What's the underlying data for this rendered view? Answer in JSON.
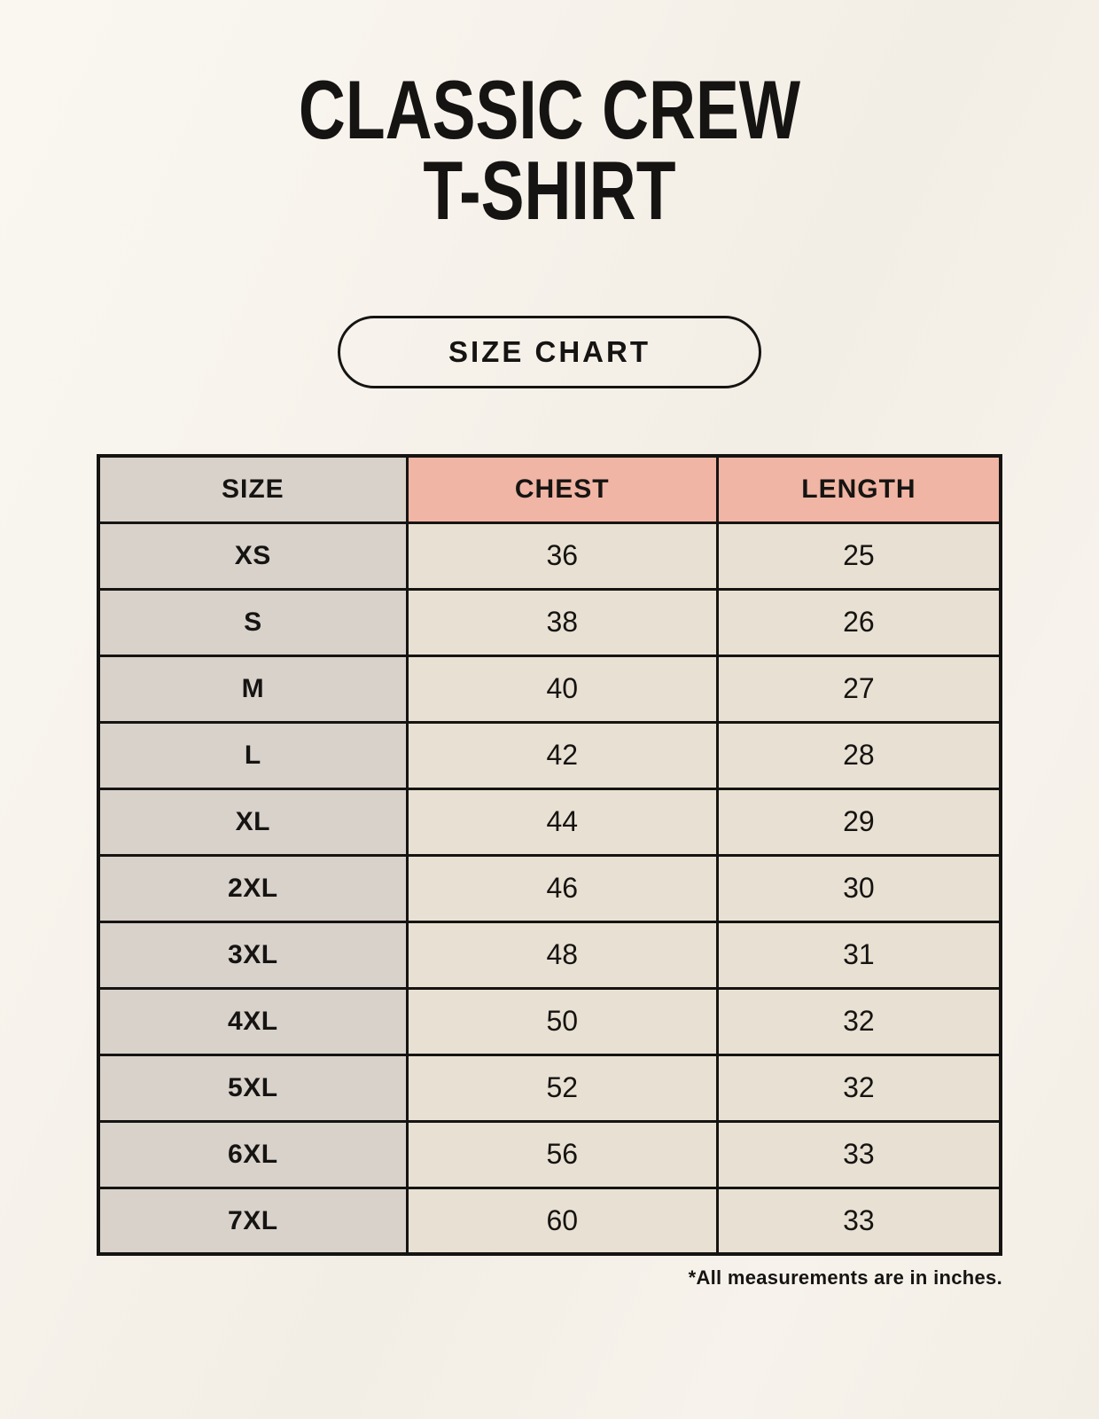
{
  "title": {
    "line1": "CLASSIC CREW",
    "line2": "T-SHIRT"
  },
  "size_chart_button": {
    "label": "SIZE CHART"
  },
  "table": {
    "headers": [
      "SIZE",
      "CHEST",
      "LENGTH"
    ],
    "rows": [
      {
        "size": "XS",
        "chest": "36",
        "length": "25"
      },
      {
        "size": "S",
        "chest": "38",
        "length": "26"
      },
      {
        "size": "M",
        "chest": "40",
        "length": "27"
      },
      {
        "size": "L",
        "chest": "42",
        "length": "28"
      },
      {
        "size": "XL",
        "chest": "44",
        "length": "29"
      },
      {
        "size": "2XL",
        "chest": "46",
        "length": "30"
      },
      {
        "size": "3XL",
        "chest": "48",
        "length": "31"
      },
      {
        "size": "4XL",
        "chest": "50",
        "length": "32"
      },
      {
        "size": "5XL",
        "chest": "52",
        "length": "32"
      },
      {
        "size": "6XL",
        "chest": "56",
        "length": "33"
      },
      {
        "size": "7XL",
        "chest": "60",
        "length": "33"
      }
    ]
  },
  "footnote": "*All measurements are in inches.",
  "colors": {
    "ink": "#161412",
    "page_bg": "#f7f3ec",
    "size_col": "#d8d2cb",
    "header_pink": "#f0b5a4",
    "data_cell": "#e8e1d3"
  }
}
